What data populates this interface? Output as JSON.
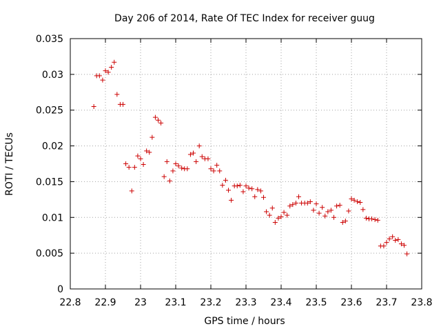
{
  "chart_data": {
    "type": "scatter",
    "title": "Day 206 of 2014, Rate Of TEC Index for receiver guug",
    "xlabel": "GPS time / hours",
    "ylabel": "ROTI / TECUs",
    "xlim": [
      22.8,
      23.8
    ],
    "ylim": [
      0,
      0.035
    ],
    "xticks": [
      22.8,
      22.9,
      23.0,
      23.1,
      23.2,
      23.3,
      23.4,
      23.5,
      23.6,
      23.7,
      23.8
    ],
    "xtick_labels": [
      "22.8",
      "22.9",
      "23",
      "23.1",
      "23.2",
      "23.3",
      "23.4",
      "23.5",
      "23.6",
      "23.7",
      "23.8"
    ],
    "yticks": [
      0,
      0.005,
      0.01,
      0.015,
      0.02,
      0.025,
      0.03,
      0.035
    ],
    "ytick_labels": [
      "0",
      "0.005",
      "0.01",
      "0.015",
      "0.02",
      "0.025",
      "0.03",
      "0.035"
    ],
    "grid": "dotted",
    "marker": "+",
    "color": "#cc0000",
    "x": [
      22.867,
      22.875,
      22.883,
      22.892,
      22.9,
      22.908,
      22.917,
      22.925,
      22.933,
      22.942,
      22.95,
      22.958,
      22.967,
      22.975,
      22.983,
      22.992,
      23.0,
      23.008,
      23.017,
      23.025,
      23.033,
      23.042,
      23.05,
      23.058,
      23.067,
      23.075,
      23.083,
      23.092,
      23.1,
      23.108,
      23.117,
      23.125,
      23.133,
      23.142,
      23.15,
      23.158,
      23.167,
      23.175,
      23.183,
      23.192,
      23.2,
      23.208,
      23.217,
      23.225,
      23.233,
      23.242,
      23.25,
      23.258,
      23.267,
      23.275,
      23.283,
      23.292,
      23.3,
      23.308,
      23.317,
      23.325,
      23.333,
      23.342,
      23.35,
      23.358,
      23.367,
      23.375,
      23.383,
      23.392,
      23.4,
      23.408,
      23.417,
      23.425,
      23.433,
      23.442,
      23.45,
      23.458,
      23.467,
      23.475,
      23.483,
      23.492,
      23.5,
      23.508,
      23.517,
      23.525,
      23.533,
      23.542,
      23.55,
      23.558,
      23.567,
      23.575,
      23.583,
      23.592,
      23.6,
      23.608,
      23.617,
      23.625,
      23.633,
      23.642,
      23.65,
      23.658,
      23.667,
      23.675,
      23.683,
      23.692,
      23.7,
      23.708,
      23.717,
      23.725,
      23.733,
      23.742,
      23.75,
      23.758
    ],
    "values": [
      0.0255,
      0.0298,
      0.0298,
      0.0292,
      0.0305,
      0.0303,
      0.031,
      0.0317,
      0.0272,
      0.0258,
      0.0258,
      0.0175,
      0.017,
      0.0137,
      0.017,
      0.0186,
      0.0182,
      0.0174,
      0.0193,
      0.0191,
      0.0212,
      0.024,
      0.0236,
      0.0232,
      0.0157,
      0.0178,
      0.0151,
      0.0165,
      0.0175,
      0.0172,
      0.0169,
      0.0168,
      0.0168,
      0.0188,
      0.019,
      0.0178,
      0.02,
      0.0185,
      0.0182,
      0.0182,
      0.0168,
      0.0165,
      0.0173,
      0.0165,
      0.0145,
      0.0152,
      0.0138,
      0.0124,
      0.0144,
      0.0144,
      0.0145,
      0.0136,
      0.0144,
      0.0141,
      0.014,
      0.0129,
      0.0139,
      0.0137,
      0.0128,
      0.0108,
      0.0103,
      0.0113,
      0.0093,
      0.0099,
      0.0101,
      0.0107,
      0.0103,
      0.0116,
      0.0118,
      0.012,
      0.0129,
      0.012,
      0.012,
      0.012,
      0.0122,
      0.011,
      0.0119,
      0.0106,
      0.0114,
      0.0102,
      0.0108,
      0.011,
      0.01,
      0.0116,
      0.0117,
      0.0093,
      0.0095,
      0.0109,
      0.0126,
      0.0124,
      0.0122,
      0.0121,
      0.0111,
      0.0099,
      0.0098,
      0.0098,
      0.0097,
      0.0096,
      0.006,
      0.006,
      0.0065,
      0.007,
      0.0073,
      0.0068,
      0.0069,
      0.0063,
      0.0061,
      0.0049
    ]
  }
}
